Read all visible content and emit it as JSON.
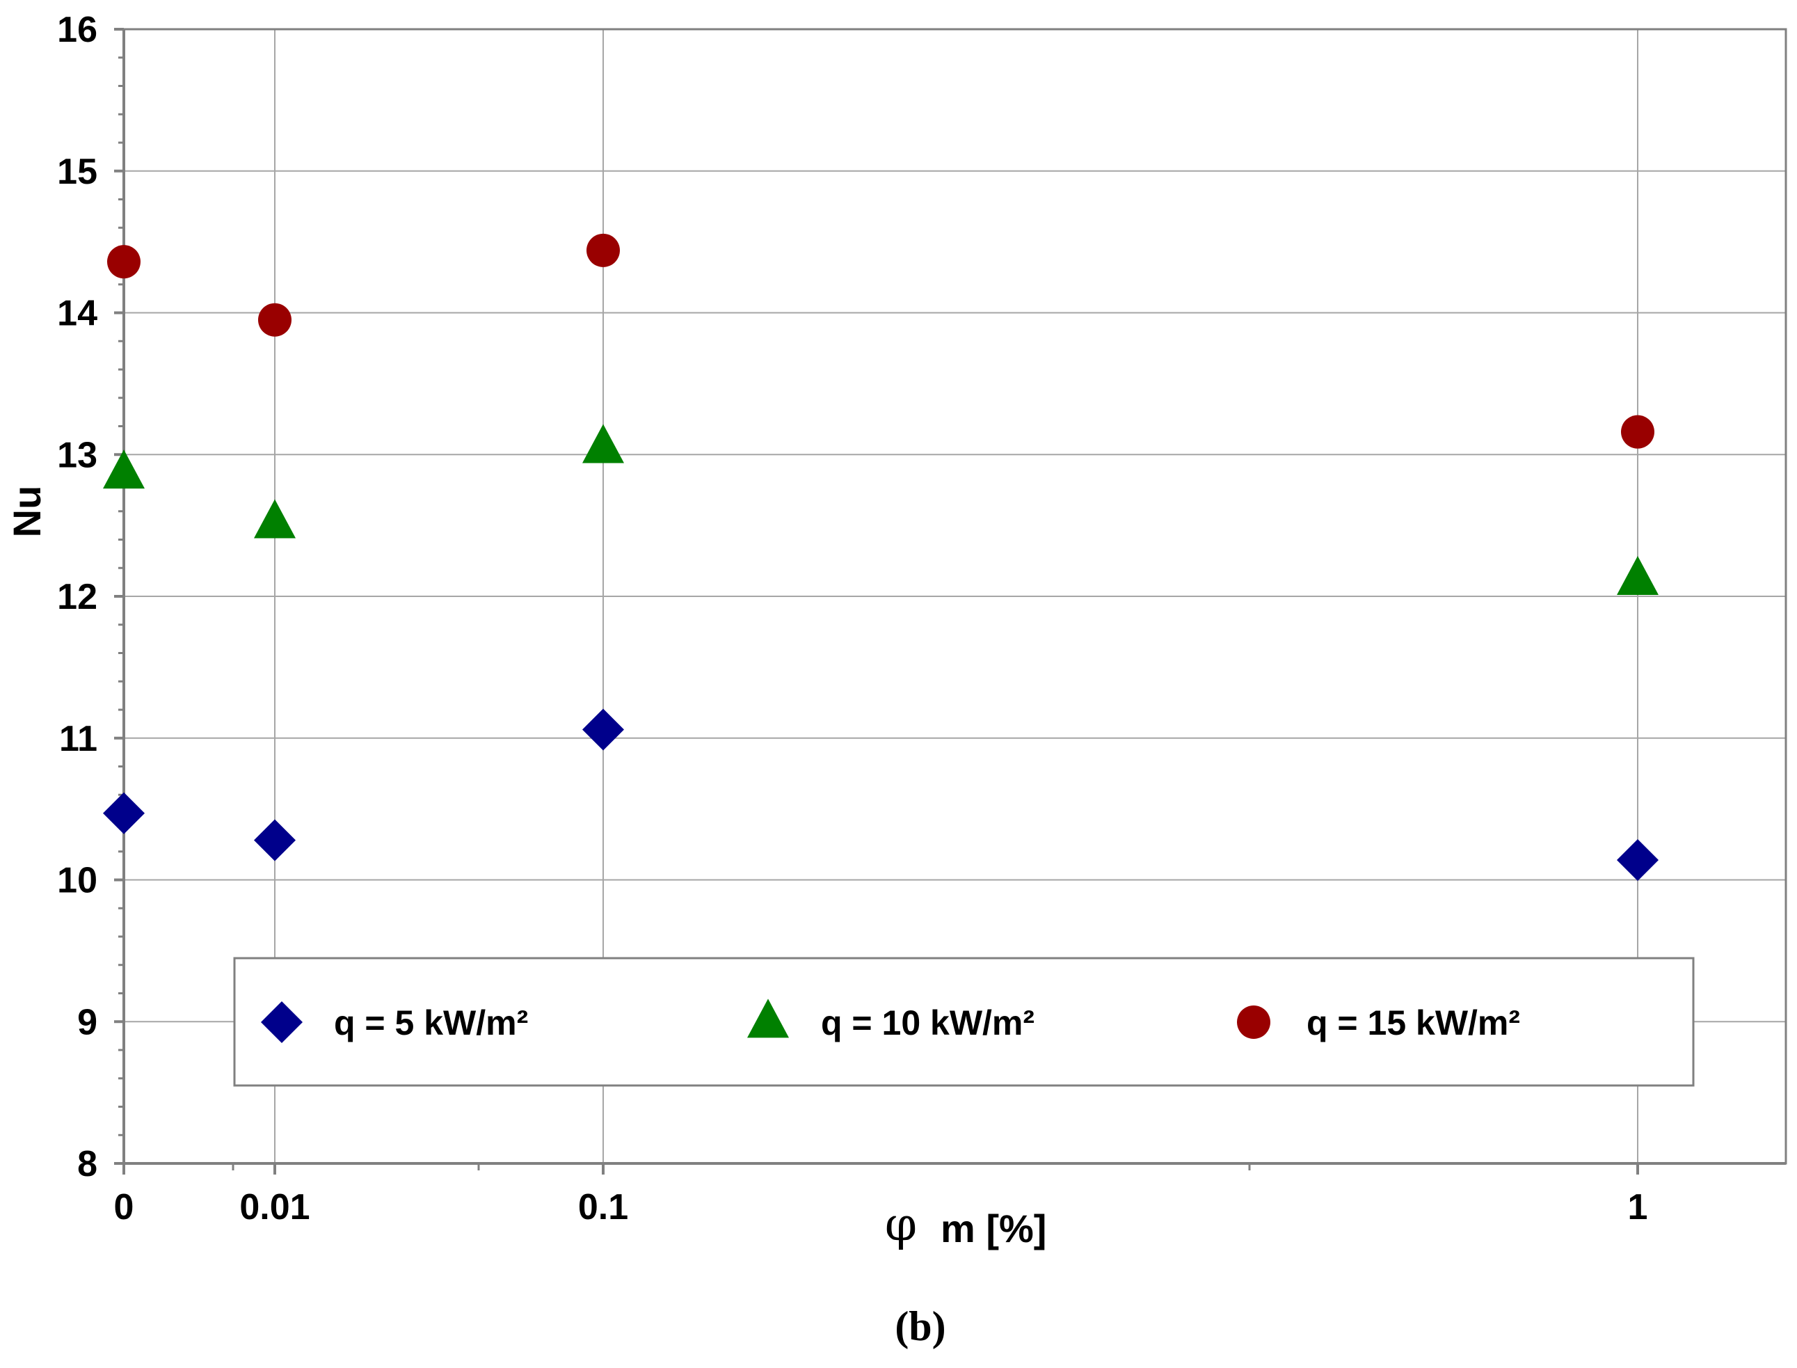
{
  "chart_data": {
    "type": "scatter",
    "title": "",
    "xlabel_symbol": "φ",
    "xlabel_text": "m [%]",
    "ylabel": "Nu",
    "caption": "(b)",
    "ylim": [
      8,
      16
    ],
    "yticks": [
      "8",
      "9",
      "10",
      "11",
      "12",
      "13",
      "14",
      "15",
      "16"
    ],
    "x_categories": [
      "0",
      "0.01",
      "0.1",
      "1"
    ],
    "grid": true,
    "legend_position": "bottom-center",
    "series": [
      {
        "name": "q =  5 kW/m²",
        "marker": "diamond",
        "color": "#00008b",
        "values": [
          10.47,
          10.28,
          11.06,
          10.14
        ]
      },
      {
        "name": "q = 10 kW/m²",
        "marker": "triangle",
        "color": "#008000",
        "values": [
          12.87,
          12.52,
          13.05,
          12.12
        ]
      },
      {
        "name": "q = 15 kW/m²",
        "marker": "circle",
        "color": "#990000",
        "values": [
          14.36,
          13.95,
          14.44,
          13.16
        ]
      }
    ]
  }
}
